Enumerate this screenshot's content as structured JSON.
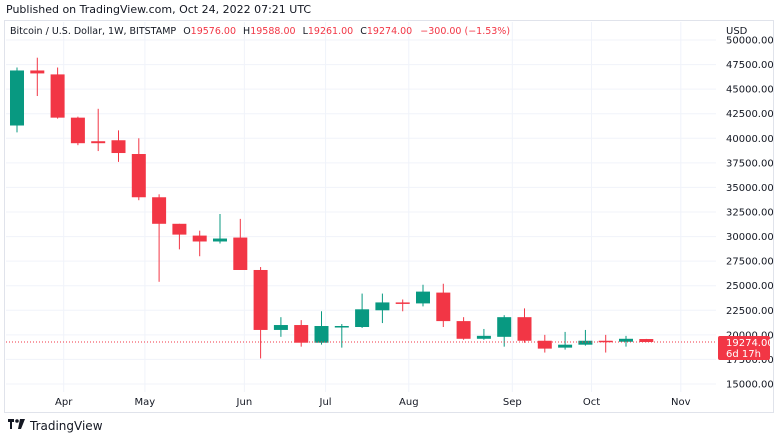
{
  "published": "Published on TradingView.com, Oct 24, 2022 07:21 UTC",
  "footer": {
    "brand": "TradingView",
    "logo_icon": "tradingview-logo-icon"
  },
  "legend": {
    "symbol": "Bitcoin / U.S. Dollar, 1W, BITSTAMP",
    "open_label": "O",
    "open": "19576.00",
    "high_label": "H",
    "high": "19588.00",
    "low_label": "L",
    "low": "19261.00",
    "close_label": "C",
    "close": "19274.00",
    "change": "−300.00 (−1.53%)"
  },
  "price_tag": {
    "price": "19274.00",
    "countdown": "6d 17h"
  },
  "colors": {
    "up": "#26a69a",
    "down": "#ef5350",
    "up_body": "#089981",
    "down_body": "#f23645",
    "tag": "#f23645"
  },
  "chart_data": {
    "type": "candlestick",
    "currency": "USD",
    "interval": "1W",
    "ylim": [
      14000,
      50000
    ],
    "y_ticks": [
      {
        "value": 50000,
        "label": "50000.00"
      },
      {
        "value": 47500,
        "label": "47500.00"
      },
      {
        "value": 45000,
        "label": "45000.00"
      },
      {
        "value": 42500,
        "label": "42500.00"
      },
      {
        "value": 40000,
        "label": "40000.00"
      },
      {
        "value": 37500,
        "label": "37500.00"
      },
      {
        "value": 35000,
        "label": "35000.00"
      },
      {
        "value": 32500,
        "label": "32500.00"
      },
      {
        "value": 30000,
        "label": "30000.00"
      },
      {
        "value": 27500,
        "label": "27500.00"
      },
      {
        "value": 25000,
        "label": "25000.00"
      },
      {
        "value": 22500,
        "label": "22500.00"
      },
      {
        "value": 20000,
        "label": "20000.00"
      },
      {
        "value": 17500,
        "label": "17500.00"
      },
      {
        "value": 15000,
        "label": "15000.00"
      }
    ],
    "x_ticks": [
      {
        "label": "Apr",
        "index": 2.3
      },
      {
        "label": "May",
        "index": 6.3
      },
      {
        "label": "Jun",
        "index": 11.2
      },
      {
        "label": "Jul",
        "index": 15.2
      },
      {
        "label": "Aug",
        "index": 19.3
      },
      {
        "label": "Sep",
        "index": 24.4
      },
      {
        "label": "Oct",
        "index": 28.3
      },
      {
        "label": "Nov",
        "index": 32.7
      }
    ],
    "candles": [
      {
        "o": 41300,
        "h": 47200,
        "l": 40600,
        "c": 46900
      },
      {
        "o": 46900,
        "h": 48200,
        "l": 44300,
        "c": 46600
      },
      {
        "o": 46500,
        "h": 47200,
        "l": 42000,
        "c": 42100
      },
      {
        "o": 42100,
        "h": 42200,
        "l": 39300,
        "c": 39500
      },
      {
        "o": 39700,
        "h": 43000,
        "l": 38700,
        "c": 39500
      },
      {
        "o": 39800,
        "h": 40800,
        "l": 37600,
        "c": 38500
      },
      {
        "o": 38400,
        "h": 40000,
        "l": 33700,
        "c": 34000
      },
      {
        "o": 34000,
        "h": 34300,
        "l": 25400,
        "c": 31300
      },
      {
        "o": 31300,
        "h": 31300,
        "l": 28700,
        "c": 30200
      },
      {
        "o": 30100,
        "h": 30600,
        "l": 28000,
        "c": 29500
      },
      {
        "o": 29500,
        "h": 32300,
        "l": 29300,
        "c": 29800
      },
      {
        "o": 29900,
        "h": 31800,
        "l": 26600,
        "c": 26600
      },
      {
        "o": 26600,
        "h": 26900,
        "l": 17600,
        "c": 20500
      },
      {
        "o": 20500,
        "h": 21800,
        "l": 19800,
        "c": 21000
      },
      {
        "o": 21000,
        "h": 21500,
        "l": 18800,
        "c": 19200
      },
      {
        "o": 19200,
        "h": 22400,
        "l": 19000,
        "c": 20900
      },
      {
        "o": 20900,
        "h": 21100,
        "l": 18700,
        "c": 20900
      },
      {
        "o": 20800,
        "h": 24200,
        "l": 20700,
        "c": 22600
      },
      {
        "o": 22500,
        "h": 24200,
        "l": 21200,
        "c": 23300
      },
      {
        "o": 23300,
        "h": 23600,
        "l": 22400,
        "c": 23200
      },
      {
        "o": 23200,
        "h": 25100,
        "l": 22900,
        "c": 24400
      },
      {
        "o": 24300,
        "h": 25200,
        "l": 20800,
        "c": 21400
      },
      {
        "o": 21400,
        "h": 21800,
        "l": 19500,
        "c": 19600
      },
      {
        "o": 19600,
        "h": 20600,
        "l": 19500,
        "c": 19900
      },
      {
        "o": 19800,
        "h": 22000,
        "l": 18800,
        "c": 21800
      },
      {
        "o": 21800,
        "h": 22700,
        "l": 19200,
        "c": 19400
      },
      {
        "o": 19400,
        "h": 20000,
        "l": 18200,
        "c": 18600
      },
      {
        "o": 18700,
        "h": 20300,
        "l": 18500,
        "c": 19000
      },
      {
        "o": 19000,
        "h": 20500,
        "l": 18900,
        "c": 19400
      },
      {
        "o": 19400,
        "h": 20000,
        "l": 18200,
        "c": 19300
      },
      {
        "o": 19300,
        "h": 19900,
        "l": 18800,
        "c": 19600
      },
      {
        "o": 19576,
        "h": 19588,
        "l": 19261,
        "c": 19274
      }
    ],
    "last_price": 19274,
    "grid": true
  }
}
